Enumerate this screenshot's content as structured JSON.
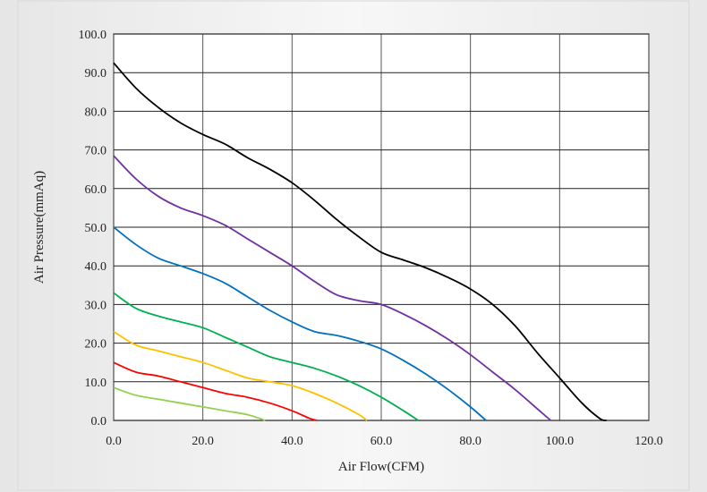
{
  "chart_data": {
    "type": "line",
    "title": "",
    "xlabel": "Air Flow(CFM)",
    "ylabel": "Air Pressure(mmAq)",
    "xlim": [
      0,
      120
    ],
    "ylim": [
      0,
      100
    ],
    "grid": true,
    "x_ticks": [
      "0.0",
      "20.0",
      "40.0",
      "60.0",
      "80.0",
      "100.0",
      "120.0"
    ],
    "y_ticks": [
      "0.0",
      "10.0",
      "20.0",
      "30.0",
      "40.0",
      "50.0",
      "60.0",
      "70.0",
      "80.0",
      "90.0",
      "100.0"
    ],
    "series": [
      {
        "color": "#000000",
        "points": [
          [
            0,
            92.5
          ],
          [
            5,
            86
          ],
          [
            10,
            81
          ],
          [
            15,
            77
          ],
          [
            20,
            74
          ],
          [
            25,
            71.5
          ],
          [
            30,
            68
          ],
          [
            35,
            65
          ],
          [
            40,
            61.5
          ],
          [
            45,
            57
          ],
          [
            50,
            52
          ],
          [
            55,
            47.5
          ],
          [
            60,
            43.5
          ],
          [
            65,
            41.5
          ],
          [
            70,
            39.5
          ],
          [
            75,
            37
          ],
          [
            80,
            34
          ],
          [
            85,
            30
          ],
          [
            90,
            24.5
          ],
          [
            95,
            17.5
          ],
          [
            100,
            11
          ],
          [
            105,
            4.5
          ],
          [
            109,
            0.5
          ],
          [
            110.5,
            0
          ]
        ]
      },
      {
        "color": "#7030a0",
        "points": [
          [
            0,
            68.5
          ],
          [
            5,
            62.5
          ],
          [
            10,
            58
          ],
          [
            15,
            55
          ],
          [
            20,
            53
          ],
          [
            25,
            50.5
          ],
          [
            30,
            47
          ],
          [
            35,
            43.5
          ],
          [
            40,
            40
          ],
          [
            45,
            36
          ],
          [
            50,
            32.5
          ],
          [
            55,
            31
          ],
          [
            60,
            30
          ],
          [
            65,
            27.5
          ],
          [
            70,
            24.5
          ],
          [
            75,
            21
          ],
          [
            80,
            17
          ],
          [
            85,
            12.5
          ],
          [
            90,
            8
          ],
          [
            95,
            3
          ],
          [
            98,
            0
          ]
        ]
      },
      {
        "color": "#0070c0",
        "points": [
          [
            0,
            50
          ],
          [
            5,
            45.5
          ],
          [
            10,
            42
          ],
          [
            15,
            40
          ],
          [
            20,
            38
          ],
          [
            25,
            35.5
          ],
          [
            30,
            32
          ],
          [
            35,
            28.5
          ],
          [
            40,
            25.5
          ],
          [
            45,
            23
          ],
          [
            50,
            22
          ],
          [
            55,
            20.5
          ],
          [
            60,
            18.5
          ],
          [
            65,
            15.5
          ],
          [
            70,
            12
          ],
          [
            75,
            8
          ],
          [
            80,
            3.5
          ],
          [
            83.5,
            0
          ]
        ]
      },
      {
        "color": "#00b050",
        "points": [
          [
            0,
            33
          ],
          [
            5,
            29
          ],
          [
            10,
            27
          ],
          [
            15,
            25.5
          ],
          [
            20,
            24
          ],
          [
            25,
            21.5
          ],
          [
            30,
            19
          ],
          [
            35,
            16.5
          ],
          [
            40,
            15
          ],
          [
            45,
            13.5
          ],
          [
            50,
            11.5
          ],
          [
            55,
            9
          ],
          [
            60,
            6
          ],
          [
            65,
            2.5
          ],
          [
            68.3,
            0
          ]
        ]
      },
      {
        "color": "#ffc000",
        "points": [
          [
            0,
            23
          ],
          [
            5,
            19.5
          ],
          [
            10,
            18
          ],
          [
            15,
            16.5
          ],
          [
            20,
            15
          ],
          [
            25,
            13
          ],
          [
            30,
            11
          ],
          [
            35,
            10
          ],
          [
            40,
            9
          ],
          [
            45,
            7
          ],
          [
            50,
            4.5
          ],
          [
            55,
            1.5
          ],
          [
            56.8,
            0
          ]
        ]
      },
      {
        "color": "#ff0000",
        "points": [
          [
            0,
            15
          ],
          [
            5,
            12.5
          ],
          [
            10,
            11.5
          ],
          [
            15,
            10
          ],
          [
            20,
            8.5
          ],
          [
            25,
            7
          ],
          [
            30,
            6
          ],
          [
            35,
            4.5
          ],
          [
            40,
            2.5
          ],
          [
            44,
            0.5
          ],
          [
            45.6,
            0
          ]
        ]
      },
      {
        "color": "#92d050",
        "points": [
          [
            0,
            8.5
          ],
          [
            5,
            6.5
          ],
          [
            10,
            5.5
          ],
          [
            15,
            4.5
          ],
          [
            20,
            3.5
          ],
          [
            25,
            2.5
          ],
          [
            30,
            1.5
          ],
          [
            34,
            0
          ]
        ]
      }
    ]
  }
}
